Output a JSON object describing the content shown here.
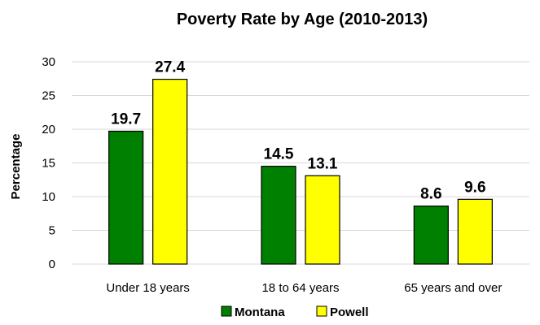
{
  "chart_data": {
    "type": "bar",
    "title": "Poverty Rate by Age (2010-2013)",
    "xlabel": "",
    "ylabel": "Percentage",
    "ylim": [
      0,
      30
    ],
    "yticks": [
      0,
      5,
      10,
      15,
      20,
      25,
      30
    ],
    "grid": true,
    "legend_position": "bottom",
    "categories": [
      "Under 18 years",
      "18 to 64 years",
      "65 years and over"
    ],
    "series": [
      {
        "name": "Montana",
        "color": "#008000",
        "values": [
          19.7,
          14.5,
          8.6
        ]
      },
      {
        "name": "Powell",
        "color": "#ffff00",
        "values": [
          27.4,
          13.1,
          9.6
        ]
      }
    ]
  }
}
